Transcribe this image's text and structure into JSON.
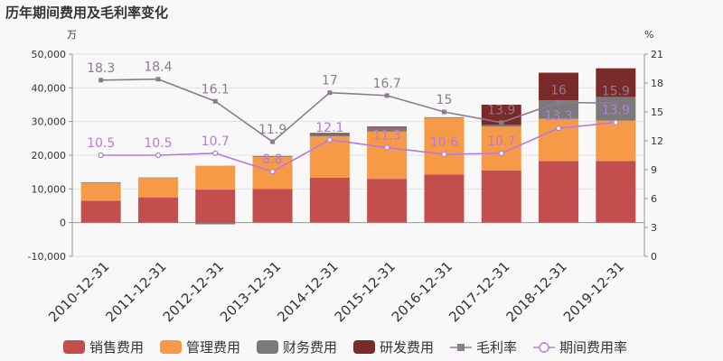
{
  "chart_data": {
    "type": "bar",
    "title": "历年期间费用及毛利率变化",
    "left_unit": "万",
    "right_unit": "%",
    "categories": [
      "2010-12-31",
      "2011-12-31",
      "2012-12-31",
      "2013-12-31",
      "2014-12-31",
      "2015-12-31",
      "2016-12-31",
      "2017-12-31",
      "2018-12-31",
      "2019-12-31"
    ],
    "ylim_left": [
      -10000,
      50000
    ],
    "yticks_left": [
      "-10,000",
      "0",
      "10,000",
      "20,000",
      "30,000",
      "40,000",
      "50,000"
    ],
    "ylim_right": [
      0,
      21
    ],
    "yticks_right": [
      "0",
      "3",
      "6",
      "9",
      "12",
      "15",
      "18",
      "21"
    ],
    "bar_series": [
      {
        "name": "销售费用",
        "color": "#c44e4e",
        "values": [
          6500,
          7500,
          9800,
          10000,
          13300,
          13000,
          14300,
          15500,
          18300,
          18300
        ]
      },
      {
        "name": "管理费用",
        "color": "#f79a48",
        "values": [
          5300,
          5800,
          7100,
          9500,
          12300,
          14000,
          16800,
          13000,
          12500,
          12000
        ]
      },
      {
        "name": "财务费用",
        "color": "#7a7a7a",
        "values": [
          200,
          100,
          -500,
          300,
          700,
          1200,
          200,
          500,
          5500,
          7000
        ]
      },
      {
        "name": "研发费用",
        "color": "#7b2a2a",
        "values": [
          0,
          0,
          0,
          0,
          300,
          300,
          0,
          6000,
          8200,
          8500
        ]
      }
    ],
    "line_series": [
      {
        "name": "毛利率",
        "color": "#8c7b8f",
        "labels": [
          "18.3",
          "18.4",
          "16.1",
          "11.9",
          "17",
          "16.7",
          "15",
          "13.9",
          "16",
          "15.9"
        ],
        "values": [
          18.3,
          18.4,
          16.1,
          11.9,
          17,
          16.7,
          15,
          13.9,
          16,
          15.9
        ]
      },
      {
        "name": "期间费用率",
        "color": "#b57ae0",
        "labels": [
          "10.5",
          "10.5",
          "10.7",
          "8.8",
          "12.1",
          "11.3",
          "10.6",
          "10.7",
          "13.3",
          "13.9"
        ],
        "values": [
          10.5,
          10.5,
          10.7,
          8.8,
          12.1,
          11.3,
          10.6,
          10.7,
          13.3,
          13.9
        ]
      }
    ],
    "legend_position": "bottom"
  }
}
